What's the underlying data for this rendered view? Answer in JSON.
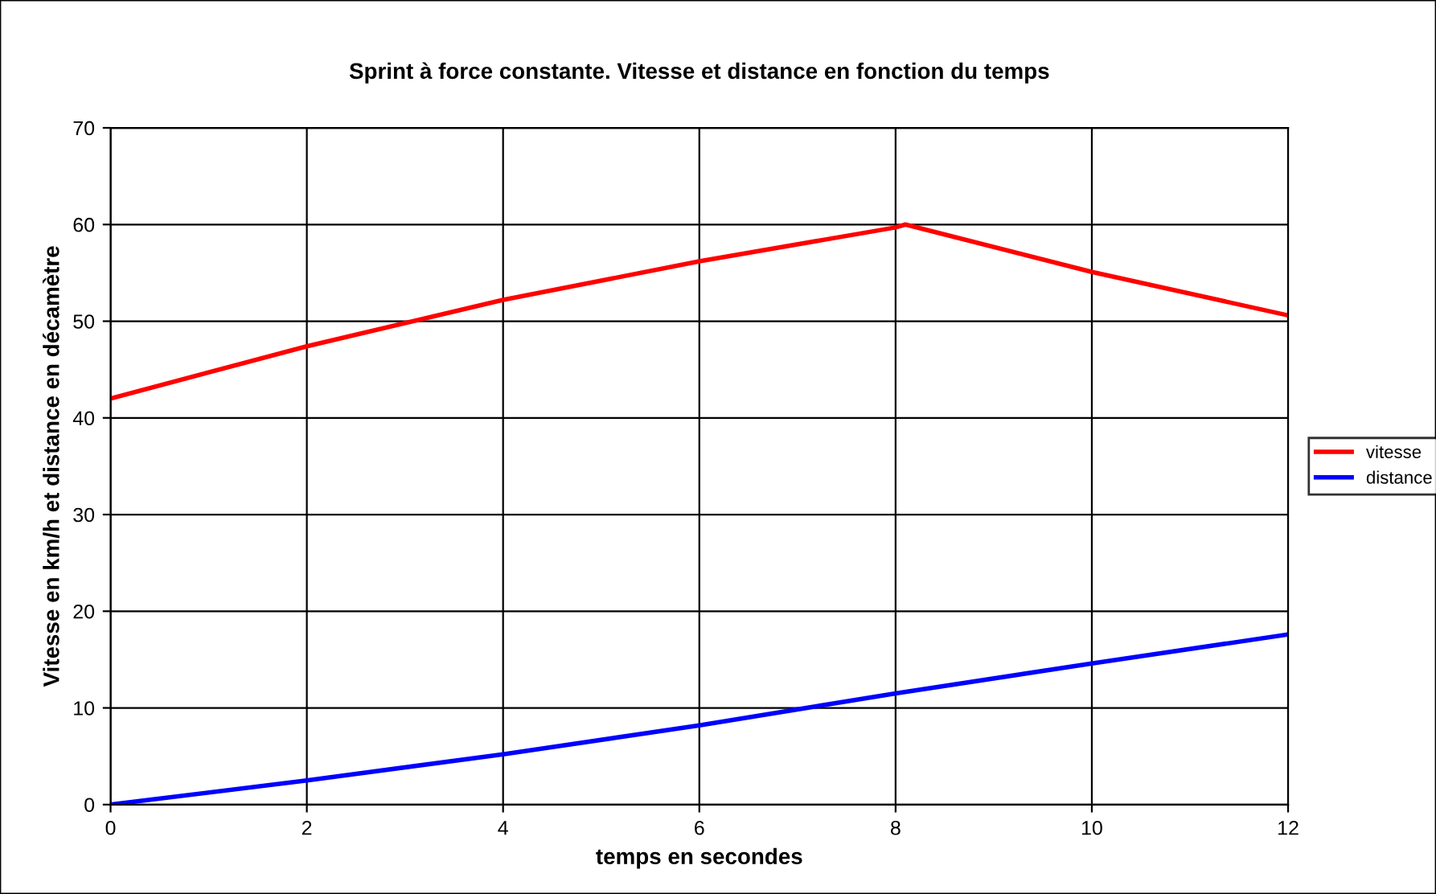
{
  "chart_data": {
    "type": "line",
    "title": "Sprint à force constante. Vitesse et distance en fonction du temps",
    "xlabel": "temps en secondes",
    "ylabel": "Vitesse en km/h et distance en décamètre",
    "series": [
      {
        "name": "vitesse",
        "color": "#ff0000",
        "x": [
          0,
          2,
          4,
          6,
          8,
          8.1,
          10,
          12
        ],
        "values": [
          42,
          47.4,
          52.2,
          56.2,
          59.7,
          60,
          55.1,
          50.6
        ]
      },
      {
        "name": "distance",
        "color": "#0000ff",
        "x": [
          0,
          2,
          4,
          6,
          8,
          10,
          12
        ],
        "values": [
          0,
          2.5,
          5.2,
          8.2,
          11.5,
          14.6,
          17.6
        ]
      }
    ],
    "xlim": [
      0,
      12
    ],
    "xticks": [
      0,
      2,
      4,
      6,
      8,
      10,
      12
    ],
    "ylim": [
      0,
      70
    ],
    "yticks": [
      0,
      10,
      20,
      30,
      40,
      50,
      60,
      70
    ],
    "grid": true,
    "legend": "right",
    "marker": "none",
    "line_style": "solid"
  }
}
